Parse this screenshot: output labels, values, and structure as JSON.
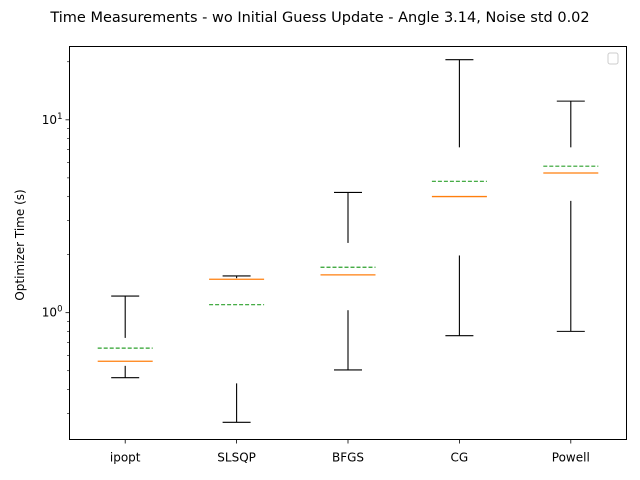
{
  "chart_data": {
    "type": "box",
    "title": "Time Measurements - wo Initial Guess Update - Angle 3.14, Noise std 0.02",
    "xlabel": "",
    "ylabel": "Optimizer Time (s)",
    "y_scale": "log",
    "ylim": [
      0.22,
      24
    ],
    "yticks": [
      {
        "value": 1,
        "label": "10^0"
      },
      {
        "value": 10,
        "label": "10^1"
      }
    ],
    "grid": false,
    "legend": {
      "placement": "top-right",
      "entries": []
    },
    "colors": {
      "median": "#ff7f0e",
      "mean": "#2ca02c",
      "whisker": "#000000",
      "frame": "#000000"
    },
    "categories": [
      "ipopt",
      "SLSQP",
      "BFGS",
      "CG",
      "Powell"
    ],
    "boxes": [
      {
        "category": "ipopt",
        "whisker_low": 0.46,
        "q1": 0.53,
        "median": 0.56,
        "mean": 0.655,
        "q3": 0.74,
        "whisker_high": 1.22
      },
      {
        "category": "SLSQP",
        "whisker_low": 0.27,
        "q1": 0.43,
        "median": 1.49,
        "mean": 1.1,
        "q3": 1.51,
        "whisker_high": 1.55
      },
      {
        "category": "BFGS",
        "whisker_low": 0.505,
        "q1": 1.03,
        "median": 1.57,
        "mean": 1.72,
        "q3": 2.3,
        "whisker_high": 4.2
      },
      {
        "category": "CG",
        "whisker_low": 0.76,
        "q1": 1.98,
        "median": 4.0,
        "mean": 4.8,
        "q3": 7.2,
        "whisker_high": 20.5
      },
      {
        "category": "Powell",
        "whisker_low": 0.8,
        "q1": 3.8,
        "median": 5.3,
        "mean": 5.75,
        "q3": 7.2,
        "whisker_high": 12.5
      }
    ]
  }
}
